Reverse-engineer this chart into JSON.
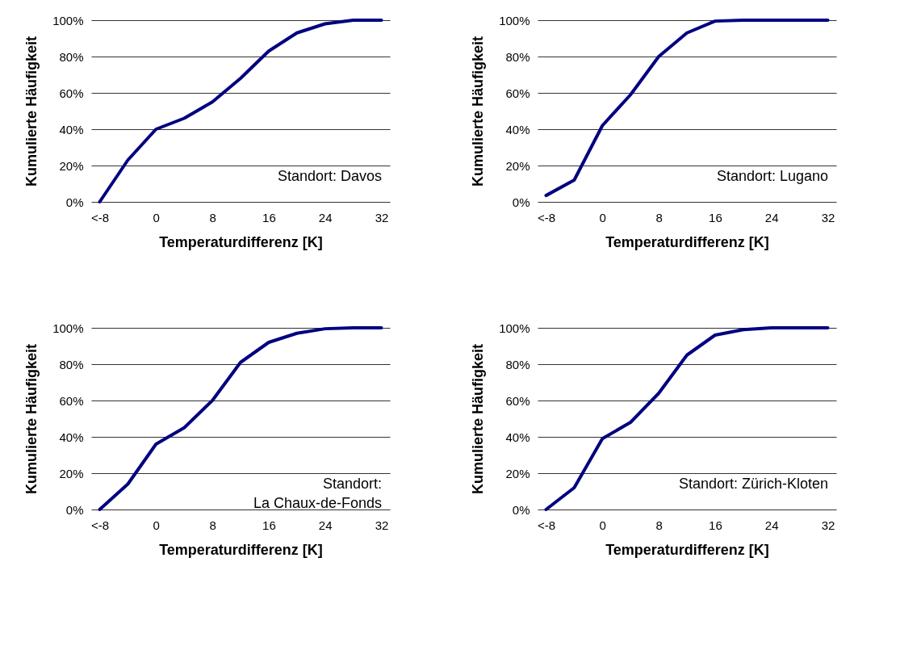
{
  "chart_data": [
    {
      "type": "line",
      "xlabel": "Temperaturdifferenz [K]",
      "ylabel": "Kumulierte Häufigkeit",
      "annotations": [
        "Standort: Davos"
      ],
      "categories": [
        "<-8",
        null,
        "0",
        null,
        "8",
        null,
        "16",
        null,
        "24",
        null,
        "32"
      ],
      "series": [
        {
          "color": "#000080",
          "values": [
            0,
            23,
            40,
            46,
            55,
            68,
            83,
            93,
            98,
            100,
            100
          ]
        }
      ],
      "ylim": [
        0,
        100
      ],
      "yticks": [
        {
          "value": 0,
          "label": "0%"
        },
        {
          "value": 20,
          "label": "20%"
        },
        {
          "value": 40,
          "label": "40%"
        },
        {
          "value": 60,
          "label": "60%"
        },
        {
          "value": 80,
          "label": "80%"
        },
        {
          "value": 100,
          "label": "100%"
        }
      ],
      "grid": "y",
      "line_style": "solid",
      "marker": "none"
    },
    {
      "type": "line",
      "xlabel": "Temperaturdifferenz [K]",
      "ylabel": "Kumulierte Häufigkeit",
      "annotations": [
        "Standort: Lugano"
      ],
      "categories": [
        "<-8",
        null,
        "0",
        null,
        "8",
        null,
        "16",
        null,
        "24",
        null,
        "32"
      ],
      "series": [
        {
          "color": "#000080",
          "values": [
            3.5,
            12,
            42,
            59,
            80,
            93,
            99.5,
            100,
            100,
            100,
            100
          ]
        }
      ],
      "ylim": [
        0,
        100
      ],
      "yticks": [
        {
          "value": 0,
          "label": "0%"
        },
        {
          "value": 20,
          "label": "20%"
        },
        {
          "value": 40,
          "label": "40%"
        },
        {
          "value": 60,
          "label": "60%"
        },
        {
          "value": 80,
          "label": "80%"
        },
        {
          "value": 100,
          "label": "100%"
        }
      ],
      "grid": "y",
      "line_style": "solid",
      "marker": "none"
    },
    {
      "type": "line",
      "xlabel": "Temperaturdifferenz [K]",
      "ylabel": "Kumulierte Häufigkeit",
      "annotations": [
        "Standort:\nLa Chaux-de-Fonds"
      ],
      "categories": [
        "<-8",
        null,
        "0",
        null,
        "8",
        null,
        "16",
        null,
        "24",
        null,
        "32"
      ],
      "series": [
        {
          "color": "#000080",
          "values": [
            0,
            14,
            36,
            45,
            60,
            81,
            92,
            97,
            99.5,
            100,
            100
          ]
        }
      ],
      "ylim": [
        0,
        100
      ],
      "yticks": [
        {
          "value": 0,
          "label": "0%"
        },
        {
          "value": 20,
          "label": "20%"
        },
        {
          "value": 40,
          "label": "40%"
        },
        {
          "value": 60,
          "label": "60%"
        },
        {
          "value": 80,
          "label": "80%"
        },
        {
          "value": 100,
          "label": "100%"
        }
      ],
      "grid": "y",
      "line_style": "solid",
      "marker": "none"
    },
    {
      "type": "line",
      "xlabel": "Temperaturdifferenz [K]",
      "ylabel": "Kumulierte Häufigkeit",
      "annotations": [
        "Standort: Zürich-Kloten"
      ],
      "categories": [
        "<-8",
        null,
        "0",
        null,
        "8",
        null,
        "16",
        null,
        "24",
        null,
        "32"
      ],
      "series": [
        {
          "color": "#000080",
          "values": [
            0,
            12,
            39,
            48,
            64,
            85,
            96,
            99,
            100,
            100,
            100
          ]
        }
      ],
      "ylim": [
        0,
        100
      ],
      "yticks": [
        {
          "value": 0,
          "label": "0%"
        },
        {
          "value": 20,
          "label": "20%"
        },
        {
          "value": 40,
          "label": "40%"
        },
        {
          "value": 60,
          "label": "60%"
        },
        {
          "value": 80,
          "label": "80%"
        },
        {
          "value": 100,
          "label": "100%"
        }
      ],
      "grid": "y",
      "line_style": "solid",
      "marker": "none"
    }
  ]
}
